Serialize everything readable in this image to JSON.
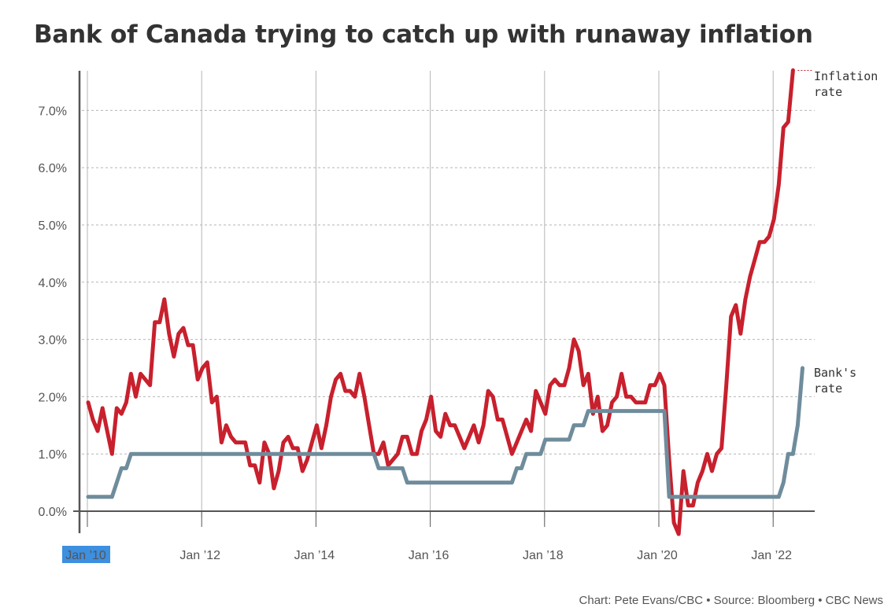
{
  "chart_data": {
    "type": "line",
    "title": "Bank of Canada trying to catch up with runaway inflation",
    "x_tick_labels": [
      "Jan ’10",
      "Jan ’12",
      "Jan ’14",
      "Jan ’16",
      "Jan ’18",
      "Jan ’20",
      "Jan ’22"
    ],
    "y_tick_labels": [
      "0.0%",
      "1.0%",
      "2.0%",
      "3.0%",
      "4.0%",
      "5.0%",
      "6.0%",
      "7.0%"
    ],
    "ylim": [
      -0.4,
      7.7
    ],
    "xlim": [
      "2010-01",
      "2022-08"
    ],
    "grid": true,
    "series": [
      {
        "name": "Inflation rate",
        "label_lines": [
          "Inflation",
          "rate"
        ],
        "color": "#c8202d",
        "points": [
          [
            "2010-01",
            1.9
          ],
          [
            "2010-02",
            1.6
          ],
          [
            "2010-03",
            1.4
          ],
          [
            "2010-04",
            1.8
          ],
          [
            "2010-05",
            1.4
          ],
          [
            "2010-06",
            1.0
          ],
          [
            "2010-07",
            1.8
          ],
          [
            "2010-08",
            1.7
          ],
          [
            "2010-09",
            1.9
          ],
          [
            "2010-10",
            2.4
          ],
          [
            "2010-11",
            2.0
          ],
          [
            "2010-12",
            2.4
          ],
          [
            "2011-01",
            2.3
          ],
          [
            "2011-02",
            2.2
          ],
          [
            "2011-03",
            3.3
          ],
          [
            "2011-04",
            3.3
          ],
          [
            "2011-05",
            3.7
          ],
          [
            "2011-06",
            3.1
          ],
          [
            "2011-07",
            2.7
          ],
          [
            "2011-08",
            3.1
          ],
          [
            "2011-09",
            3.2
          ],
          [
            "2011-10",
            2.9
          ],
          [
            "2011-11",
            2.9
          ],
          [
            "2011-12",
            2.3
          ],
          [
            "2012-01",
            2.5
          ],
          [
            "2012-02",
            2.6
          ],
          [
            "2012-03",
            1.9
          ],
          [
            "2012-04",
            2.0
          ],
          [
            "2012-05",
            1.2
          ],
          [
            "2012-06",
            1.5
          ],
          [
            "2012-07",
            1.3
          ],
          [
            "2012-08",
            1.2
          ],
          [
            "2012-09",
            1.2
          ],
          [
            "2012-10",
            1.2
          ],
          [
            "2012-11",
            0.8
          ],
          [
            "2012-12",
            0.8
          ],
          [
            "2013-01",
            0.5
          ],
          [
            "2013-02",
            1.2
          ],
          [
            "2013-03",
            1.0
          ],
          [
            "2013-04",
            0.4
          ],
          [
            "2013-05",
            0.7
          ],
          [
            "2013-06",
            1.2
          ],
          [
            "2013-07",
            1.3
          ],
          [
            "2013-08",
            1.1
          ],
          [
            "2013-09",
            1.1
          ],
          [
            "2013-10",
            0.7
          ],
          [
            "2013-11",
            0.9
          ],
          [
            "2013-12",
            1.2
          ],
          [
            "2014-01",
            1.5
          ],
          [
            "2014-02",
            1.1
          ],
          [
            "2014-03",
            1.5
          ],
          [
            "2014-04",
            2.0
          ],
          [
            "2014-05",
            2.3
          ],
          [
            "2014-06",
            2.4
          ],
          [
            "2014-07",
            2.1
          ],
          [
            "2014-08",
            2.1
          ],
          [
            "2014-09",
            2.0
          ],
          [
            "2014-10",
            2.4
          ],
          [
            "2014-11",
            2.0
          ],
          [
            "2014-12",
            1.5
          ],
          [
            "2015-01",
            1.0
          ],
          [
            "2015-02",
            1.0
          ],
          [
            "2015-03",
            1.2
          ],
          [
            "2015-04",
            0.8
          ],
          [
            "2015-05",
            0.9
          ],
          [
            "2015-06",
            1.0
          ],
          [
            "2015-07",
            1.3
          ],
          [
            "2015-08",
            1.3
          ],
          [
            "2015-09",
            1.0
          ],
          [
            "2015-10",
            1.0
          ],
          [
            "2015-11",
            1.4
          ],
          [
            "2015-12",
            1.6
          ],
          [
            "2016-01",
            2.0
          ],
          [
            "2016-02",
            1.4
          ],
          [
            "2016-03",
            1.3
          ],
          [
            "2016-04",
            1.7
          ],
          [
            "2016-05",
            1.5
          ],
          [
            "2016-06",
            1.5
          ],
          [
            "2016-07",
            1.3
          ],
          [
            "2016-08",
            1.1
          ],
          [
            "2016-09",
            1.3
          ],
          [
            "2016-10",
            1.5
          ],
          [
            "2016-11",
            1.2
          ],
          [
            "2016-12",
            1.5
          ],
          [
            "2017-01",
            2.1
          ],
          [
            "2017-02",
            2.0
          ],
          [
            "2017-03",
            1.6
          ],
          [
            "2017-04",
            1.6
          ],
          [
            "2017-05",
            1.3
          ],
          [
            "2017-06",
            1.0
          ],
          [
            "2017-07",
            1.2
          ],
          [
            "2017-08",
            1.4
          ],
          [
            "2017-09",
            1.6
          ],
          [
            "2017-10",
            1.4
          ],
          [
            "2017-11",
            2.1
          ],
          [
            "2017-12",
            1.9
          ],
          [
            "2018-01",
            1.7
          ],
          [
            "2018-02",
            2.2
          ],
          [
            "2018-03",
            2.3
          ],
          [
            "2018-04",
            2.2
          ],
          [
            "2018-05",
            2.2
          ],
          [
            "2018-06",
            2.5
          ],
          [
            "2018-07",
            3.0
          ],
          [
            "2018-08",
            2.8
          ],
          [
            "2018-09",
            2.2
          ],
          [
            "2018-10",
            2.4
          ],
          [
            "2018-11",
            1.7
          ],
          [
            "2018-12",
            2.0
          ],
          [
            "2019-01",
            1.4
          ],
          [
            "2019-02",
            1.5
          ],
          [
            "2019-03",
            1.9
          ],
          [
            "2019-04",
            2.0
          ],
          [
            "2019-05",
            2.4
          ],
          [
            "2019-06",
            2.0
          ],
          [
            "2019-07",
            2.0
          ],
          [
            "2019-08",
            1.9
          ],
          [
            "2019-09",
            1.9
          ],
          [
            "2019-10",
            1.9
          ],
          [
            "2019-11",
            2.2
          ],
          [
            "2019-12",
            2.2
          ],
          [
            "2020-01",
            2.4
          ],
          [
            "2020-02",
            2.2
          ],
          [
            "2020-03",
            0.9
          ],
          [
            "2020-04",
            -0.2
          ],
          [
            "2020-05",
            -0.4
          ],
          [
            "2020-06",
            0.7
          ],
          [
            "2020-07",
            0.1
          ],
          [
            "2020-08",
            0.1
          ],
          [
            "2020-09",
            0.5
          ],
          [
            "2020-10",
            0.7
          ],
          [
            "2020-11",
            1.0
          ],
          [
            "2020-12",
            0.7
          ],
          [
            "2021-01",
            1.0
          ],
          [
            "2021-02",
            1.1
          ],
          [
            "2021-03",
            2.2
          ],
          [
            "2021-04",
            3.4
          ],
          [
            "2021-05",
            3.6
          ],
          [
            "2021-06",
            3.1
          ],
          [
            "2021-07",
            3.7
          ],
          [
            "2021-08",
            4.1
          ],
          [
            "2021-09",
            4.4
          ],
          [
            "2021-10",
            4.7
          ],
          [
            "2021-11",
            4.7
          ],
          [
            "2021-12",
            4.8
          ],
          [
            "2022-01",
            5.1
          ],
          [
            "2022-02",
            5.7
          ],
          [
            "2022-03",
            6.7
          ],
          [
            "2022-04",
            6.8
          ],
          [
            "2022-05",
            7.7
          ]
        ]
      },
      {
        "name": "Bank's rate",
        "label_lines": [
          "Bank's",
          "rate"
        ],
        "color": "#6f8c9c",
        "points": [
          [
            "2010-01",
            0.25
          ],
          [
            "2010-06",
            0.25
          ],
          [
            "2010-07",
            0.5
          ],
          [
            "2010-08",
            0.75
          ],
          [
            "2010-09",
            0.75
          ],
          [
            "2010-10",
            1.0
          ],
          [
            "2015-01",
            1.0
          ],
          [
            "2015-02",
            0.75
          ],
          [
            "2015-07",
            0.75
          ],
          [
            "2015-08",
            0.5
          ],
          [
            "2017-06",
            0.5
          ],
          [
            "2017-07",
            0.75
          ],
          [
            "2017-08",
            0.75
          ],
          [
            "2017-09",
            1.0
          ],
          [
            "2017-12",
            1.0
          ],
          [
            "2018-01",
            1.25
          ],
          [
            "2018-06",
            1.25
          ],
          [
            "2018-07",
            1.5
          ],
          [
            "2018-09",
            1.5
          ],
          [
            "2018-10",
            1.75
          ],
          [
            "2020-02",
            1.75
          ],
          [
            "2020-03",
            0.25
          ],
          [
            "2022-02",
            0.25
          ],
          [
            "2022-03",
            0.5
          ],
          [
            "2022-04",
            1.0
          ],
          [
            "2022-05",
            1.0
          ],
          [
            "2022-06",
            1.5
          ],
          [
            "2022-07",
            2.5
          ]
        ]
      }
    ]
  },
  "credit": "Chart: Pete Evans/CBC • Source: Bloomberg • CBC News",
  "colors": {
    "grid": "#b5b5b5",
    "axis": "#555555",
    "highlight": "#3d8fe0"
  }
}
